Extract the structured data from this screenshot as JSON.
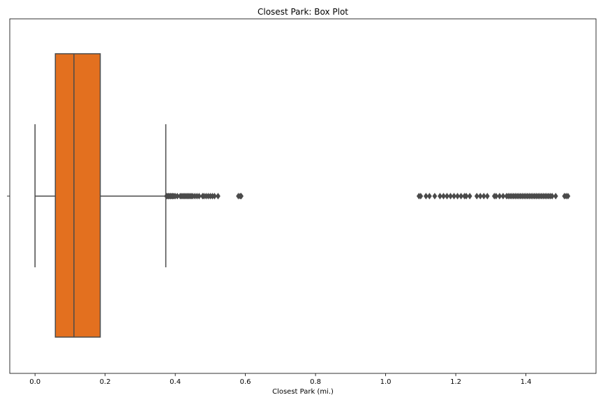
{
  "chart_data": {
    "type": "box",
    "title": "Closest Park: Box Plot",
    "xlabel": "Closest Park (mi.)",
    "ylabel": "",
    "xlim": [
      -0.072,
      1.6
    ],
    "xticks": [
      0.0,
      0.2,
      0.4,
      0.6,
      0.8,
      1.0,
      1.2,
      1.4
    ],
    "xtick_labels": [
      "0.0",
      "0.2",
      "0.4",
      "0.6",
      "0.8",
      "1.0",
      "1.2",
      "1.4"
    ],
    "grid": false,
    "box": {
      "color": "#e3701f",
      "whisker_low": 0.0,
      "q1": 0.058,
      "median": 0.111,
      "q3": 0.186,
      "whisker_high": 0.373
    },
    "outliers": [
      0.375,
      0.378,
      0.381,
      0.384,
      0.387,
      0.39,
      0.393,
      0.396,
      0.4,
      0.406,
      0.414,
      0.418,
      0.422,
      0.426,
      0.43,
      0.434,
      0.438,
      0.442,
      0.446,
      0.45,
      0.456,
      0.462,
      0.468,
      0.478,
      0.482,
      0.488,
      0.494,
      0.5,
      0.506,
      0.512,
      0.522,
      0.58,
      0.585,
      0.588,
      1.095,
      1.1,
      1.115,
      1.125,
      1.14,
      1.155,
      1.165,
      1.175,
      1.185,
      1.195,
      1.205,
      1.215,
      1.225,
      1.23,
      1.24,
      1.26,
      1.27,
      1.28,
      1.29,
      1.31,
      1.315,
      1.325,
      1.335,
      1.345,
      1.35,
      1.355,
      1.36,
      1.365,
      1.37,
      1.375,
      1.38,
      1.385,
      1.39,
      1.395,
      1.4,
      1.405,
      1.41,
      1.415,
      1.42,
      1.425,
      1.43,
      1.435,
      1.44,
      1.445,
      1.45,
      1.455,
      1.46,
      1.465,
      1.47,
      1.475,
      1.485,
      1.51,
      1.515,
      1.52
    ]
  }
}
